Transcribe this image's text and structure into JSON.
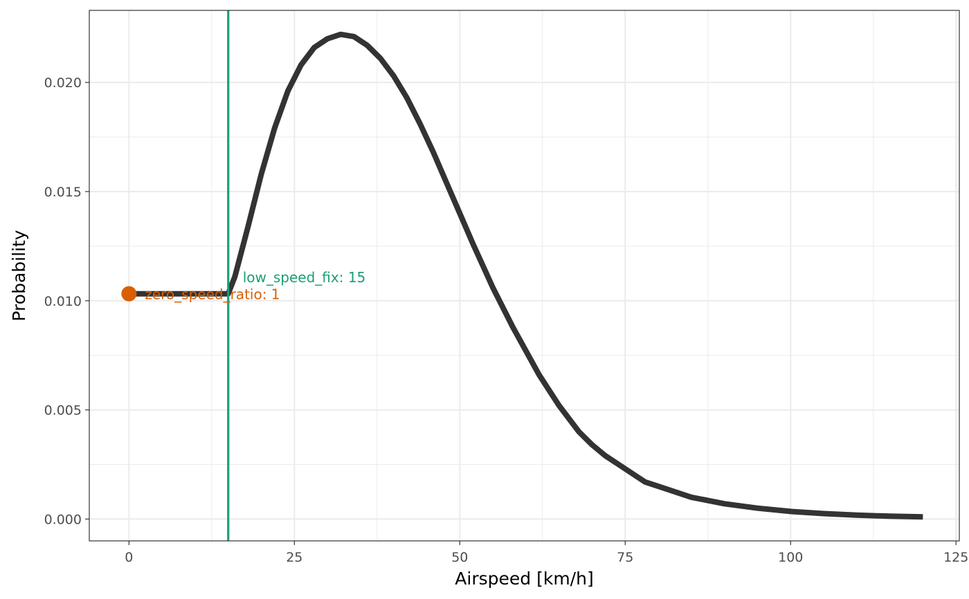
{
  "chart_data": {
    "type": "line",
    "xlabel": "Airspeed [km/h]",
    "ylabel": "Probability",
    "xlim": [
      -6,
      125.5
    ],
    "ylim": [
      -0.001,
      0.0233
    ],
    "x_ticks": [
      0,
      25,
      50,
      75,
      100,
      125
    ],
    "y_ticks": [
      0.0,
      0.005,
      0.01,
      0.015,
      0.02
    ],
    "x_tick_labels": [
      "0",
      "25",
      "50",
      "75",
      "100",
      "125"
    ],
    "y_tick_labels": [
      "0.000",
      "0.005",
      "0.010",
      "0.015",
      "0.020"
    ],
    "grid": true,
    "series": [
      {
        "color": "#333333",
        "x": [
          0,
          15,
          15,
          16,
          18,
          20,
          22,
          24,
          26,
          28,
          30,
          32,
          34,
          36,
          38,
          40,
          42,
          44,
          46,
          48,
          50,
          52,
          55,
          58,
          60,
          62,
          65,
          68,
          70,
          72,
          75,
          78,
          80,
          85,
          90,
          95,
          100,
          105,
          110,
          115,
          120
        ],
        "y": [
          0.01032,
          0.01032,
          0.01032,
          0.0111,
          0.0134,
          0.0158,
          0.0179,
          0.0196,
          0.0208,
          0.0216,
          0.022,
          0.0222,
          0.0221,
          0.0217,
          0.0211,
          0.0203,
          0.0193,
          0.0181,
          0.0168,
          0.0154,
          0.014,
          0.0126,
          0.0106,
          0.0088,
          0.0077,
          0.0066,
          0.0052,
          0.004,
          0.0034,
          0.0029,
          0.0023,
          0.0017,
          0.0015,
          0.001,
          0.0007,
          0.0005,
          0.00035,
          0.00025,
          0.00018,
          0.00013,
          0.0001
        ]
      }
    ],
    "low_speed_fix": {
      "x": 15,
      "label": "low_speed_fix: 15",
      "color": "#1b9e77"
    },
    "zero_speed_point": {
      "x": 0,
      "y": 0.01032,
      "label": "zero_speed_ratio: 1",
      "color": "#d95f02"
    }
  }
}
